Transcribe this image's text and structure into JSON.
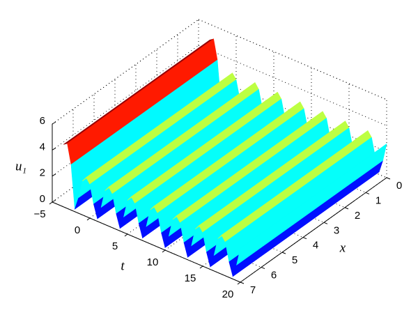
{
  "chart_data": {
    "type": "surface",
    "xlabel": "x",
    "ylabel": "t",
    "zlabel": "u₁",
    "xlim": [
      0,
      7
    ],
    "xticks": [
      0,
      1,
      2,
      3,
      4,
      5,
      6,
      7
    ],
    "tlim": [
      -5,
      20
    ],
    "tticks": [
      {
        "value": -5,
        "label": "−5"
      },
      0,
      5,
      10,
      15,
      20
    ],
    "zlim": [
      0,
      6
    ],
    "zticks": [
      0,
      2,
      4,
      6
    ],
    "colormap": "jet",
    "clim": [
      0,
      5
    ],
    "grid": true,
    "x": [
      0,
      7
    ],
    "t": [
      -3.5,
      -3,
      -2.5,
      -2,
      -1.5,
      -1,
      -0.5,
      0,
      0.5,
      1,
      1.5,
      2,
      2.5,
      3,
      3.5,
      4,
      4.5,
      5,
      5.5,
      6,
      6.5,
      7,
      7.5,
      8,
      8.5,
      9,
      9.5,
      10,
      10.5,
      11,
      11.5,
      12,
      12.5,
      13,
      13.5,
      14,
      14.5,
      15,
      15.5,
      16,
      16.5,
      17,
      17.5,
      18,
      18.5,
      19,
      19.5,
      20
    ],
    "z": [
      [
        4.8,
        4.8
      ],
      [
        5,
        5
      ],
      [
        3.5,
        3.5
      ],
      [
        0.2,
        0.2
      ],
      [
        1.2,
        1.2
      ],
      [
        2.6,
        2.6
      ],
      [
        3,
        3
      ],
      [
        2.6,
        2.6
      ],
      [
        1.2,
        1.2
      ],
      [
        0.2,
        0.2
      ],
      [
        1.2,
        1.2
      ],
      [
        2.6,
        2.6
      ],
      [
        3,
        3
      ],
      [
        2.6,
        2.6
      ],
      [
        1.2,
        1.2
      ],
      [
        0.2,
        0.2
      ],
      [
        1.2,
        1.2
      ],
      [
        2.6,
        2.6
      ],
      [
        3,
        3
      ],
      [
        2.6,
        2.6
      ],
      [
        1.2,
        1.2
      ],
      [
        0.2,
        0.2
      ],
      [
        1.2,
        1.2
      ],
      [
        2.6,
        2.6
      ],
      [
        3,
        3
      ],
      [
        2.6,
        2.6
      ],
      [
        1.2,
        1.2
      ],
      [
        0.2,
        0.2
      ],
      [
        1.2,
        1.2
      ],
      [
        2.6,
        2.6
      ],
      [
        3,
        3
      ],
      [
        2.6,
        2.6
      ],
      [
        1.2,
        1.2
      ],
      [
        0.2,
        0.2
      ],
      [
        1.2,
        1.2
      ],
      [
        2.6,
        2.6
      ],
      [
        3,
        3
      ],
      [
        2.6,
        2.6
      ],
      [
        1.2,
        1.2
      ],
      [
        0.2,
        0.2
      ],
      [
        1.2,
        1.2
      ],
      [
        2.6,
        2.6
      ],
      [
        3,
        3
      ],
      [
        2.6,
        2.6
      ],
      [
        1.2,
        1.2
      ],
      [
        0.2,
        0.2
      ],
      [
        1.2,
        1.2
      ],
      [
        2.6,
        2.6
      ]
    ]
  }
}
